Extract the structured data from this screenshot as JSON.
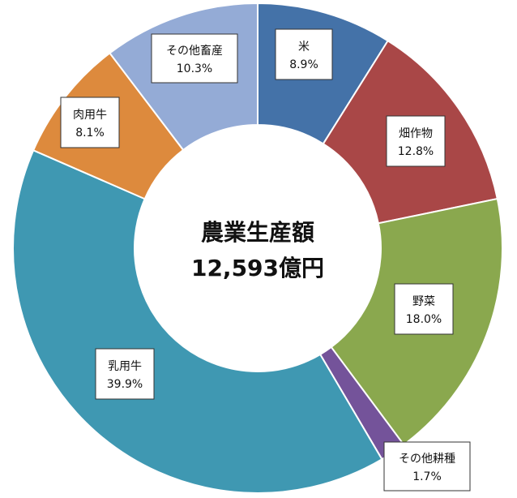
{
  "chart_data": {
    "type": "pie",
    "variant": "donut",
    "center_title": "農業生産額",
    "center_value": "12,593億円",
    "slices": [
      {
        "name": "米",
        "value": 8.9,
        "value_label": "8.9%",
        "color": "#4472a8"
      },
      {
        "name": "畑作物",
        "value": 12.8,
        "value_label": "12.8%",
        "color": "#a94747"
      },
      {
        "name": "野菜",
        "value": 18.0,
        "value_label": "18.0%",
        "color": "#8aa84e"
      },
      {
        "name": "その他耕種",
        "value": 1.7,
        "value_label": "1.7%",
        "color": "#74539a"
      },
      {
        "name": "乳用牛",
        "value": 39.9,
        "value_label": "39.9%",
        "color": "#3f98b2"
      },
      {
        "name": "肉用牛",
        "value": 8.1,
        "value_label": "8.1%",
        "color": "#dd8a3d"
      },
      {
        "name": "その他畜産",
        "value": 10.3,
        "value_label": "10.3%",
        "color": "#94abd6"
      }
    ]
  }
}
